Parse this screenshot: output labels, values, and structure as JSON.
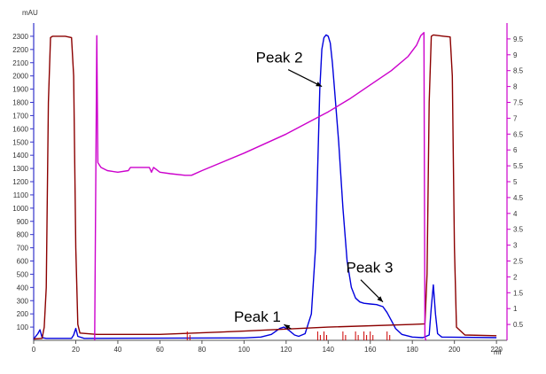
{
  "chart_data": {
    "type": "line",
    "title": "",
    "xlabel": "ml",
    "ylabel_left": "mAU",
    "xlim": [
      0,
      225
    ],
    "ylim_left": [
      0,
      2400
    ],
    "ylim_right": [
      0,
      10
    ],
    "x_ticks": [
      0,
      20,
      40,
      60,
      80,
      100,
      120,
      140,
      160,
      180,
      200,
      220
    ],
    "y_ticks_left": [
      100,
      200,
      300,
      400,
      500,
      600,
      700,
      800,
      900,
      1000,
      1100,
      1200,
      1300,
      1400,
      1500,
      1600,
      1700,
      1800,
      1900,
      2000,
      2100,
      2200,
      2300
    ],
    "y_ticks_right": [
      0.5,
      1,
      1.5,
      2,
      2.5,
      3,
      3.5,
      4,
      4.5,
      5,
      5.5,
      6,
      6.5,
      7,
      7.5,
      8,
      8.5,
      9,
      9.5
    ],
    "series": [
      {
        "color": "#0000dd",
        "axis": "left",
        "points": [
          [
            0,
            10
          ],
          [
            2,
            50
          ],
          [
            3,
            80
          ],
          [
            4,
            20
          ],
          [
            6,
            15
          ],
          [
            18,
            15
          ],
          [
            19,
            40
          ],
          [
            20,
            90
          ],
          [
            21,
            30
          ],
          [
            24,
            15
          ],
          [
            100,
            18
          ],
          [
            108,
            25
          ],
          [
            113,
            45
          ],
          [
            117,
            90
          ],
          [
            119,
            100
          ],
          [
            121,
            80
          ],
          [
            124,
            40
          ],
          [
            126,
            30
          ],
          [
            129,
            50
          ],
          [
            132,
            200
          ],
          [
            134,
            700
          ],
          [
            135,
            1300
          ],
          [
            136,
            1900
          ],
          [
            137,
            2200
          ],
          [
            138,
            2290
          ],
          [
            139,
            2310
          ],
          [
            140,
            2300
          ],
          [
            141,
            2250
          ],
          [
            142,
            2100
          ],
          [
            143,
            1900
          ],
          [
            145,
            1500
          ],
          [
            147,
            1000
          ],
          [
            149,
            600
          ],
          [
            151,
            400
          ],
          [
            153,
            320
          ],
          [
            155,
            290
          ],
          [
            157,
            280
          ],
          [
            160,
            275
          ],
          [
            163,
            270
          ],
          [
            166,
            255
          ],
          [
            168,
            210
          ],
          [
            170,
            150
          ],
          [
            172,
            90
          ],
          [
            175,
            45
          ],
          [
            180,
            25
          ],
          [
            185,
            20
          ],
          [
            188,
            40
          ],
          [
            189,
            250
          ],
          [
            190,
            420
          ],
          [
            191,
            200
          ],
          [
            192,
            50
          ],
          [
            194,
            25
          ],
          [
            220,
            20
          ]
        ]
      },
      {
        "color": "#8b0000",
        "axis": "left",
        "points": [
          [
            0,
            10
          ],
          [
            4,
            15
          ],
          [
            5,
            100
          ],
          [
            6,
            400
          ],
          [
            7,
            1800
          ],
          [
            8,
            2290
          ],
          [
            9,
            2300
          ],
          [
            12,
            2300
          ],
          [
            15,
            2300
          ],
          [
            18,
            2290
          ],
          [
            19,
            2000
          ],
          [
            20,
            700
          ],
          [
            21,
            120
          ],
          [
            22,
            55
          ],
          [
            30,
            45
          ],
          [
            60,
            45
          ],
          [
            100,
            70
          ],
          [
            140,
            100
          ],
          [
            180,
            120
          ],
          [
            186,
            125
          ],
          [
            187,
            500
          ],
          [
            188,
            1800
          ],
          [
            189,
            2300
          ],
          [
            190,
            2310
          ],
          [
            195,
            2300
          ],
          [
            198,
            2295
          ],
          [
            199,
            2000
          ],
          [
            200,
            700
          ],
          [
            201,
            100
          ],
          [
            205,
            40
          ],
          [
            220,
            35
          ]
        ]
      },
      {
        "color": "#cc00cc",
        "axis": "right",
        "points": [
          [
            29,
            0
          ],
          [
            30,
            9.6
          ],
          [
            30.5,
            5.6
          ],
          [
            32,
            5.45
          ],
          [
            35,
            5.35
          ],
          [
            40,
            5.3
          ],
          [
            45,
            5.35
          ],
          [
            46,
            5.45
          ],
          [
            55,
            5.45
          ],
          [
            56,
            5.3
          ],
          [
            57,
            5.45
          ],
          [
            60,
            5.3
          ],
          [
            65,
            5.25
          ],
          [
            72,
            5.2
          ],
          [
            75,
            5.2
          ],
          [
            80,
            5.35
          ],
          [
            100,
            5.9
          ],
          [
            120,
            6.5
          ],
          [
            130,
            6.85
          ],
          [
            140,
            7.2
          ],
          [
            150,
            7.6
          ],
          [
            160,
            8.05
          ],
          [
            170,
            8.5
          ],
          [
            178,
            8.95
          ],
          [
            182,
            9.3
          ],
          [
            184,
            9.6
          ],
          [
            185.5,
            9.7
          ],
          [
            186,
            0.1
          ],
          [
            186.5,
            0
          ]
        ]
      }
    ],
    "annotations": [
      {
        "text": "Peak 1",
        "x": 119,
        "y": 100
      },
      {
        "text": "Peak 2",
        "x": 137,
        "y": 1900
      },
      {
        "text": "Peak 3",
        "x": 166,
        "y": 270
      }
    ],
    "fraction_markers_x": [
      73,
      135,
      138,
      147,
      153,
      157,
      160,
      168
    ],
    "grid": false,
    "legend": "none"
  }
}
